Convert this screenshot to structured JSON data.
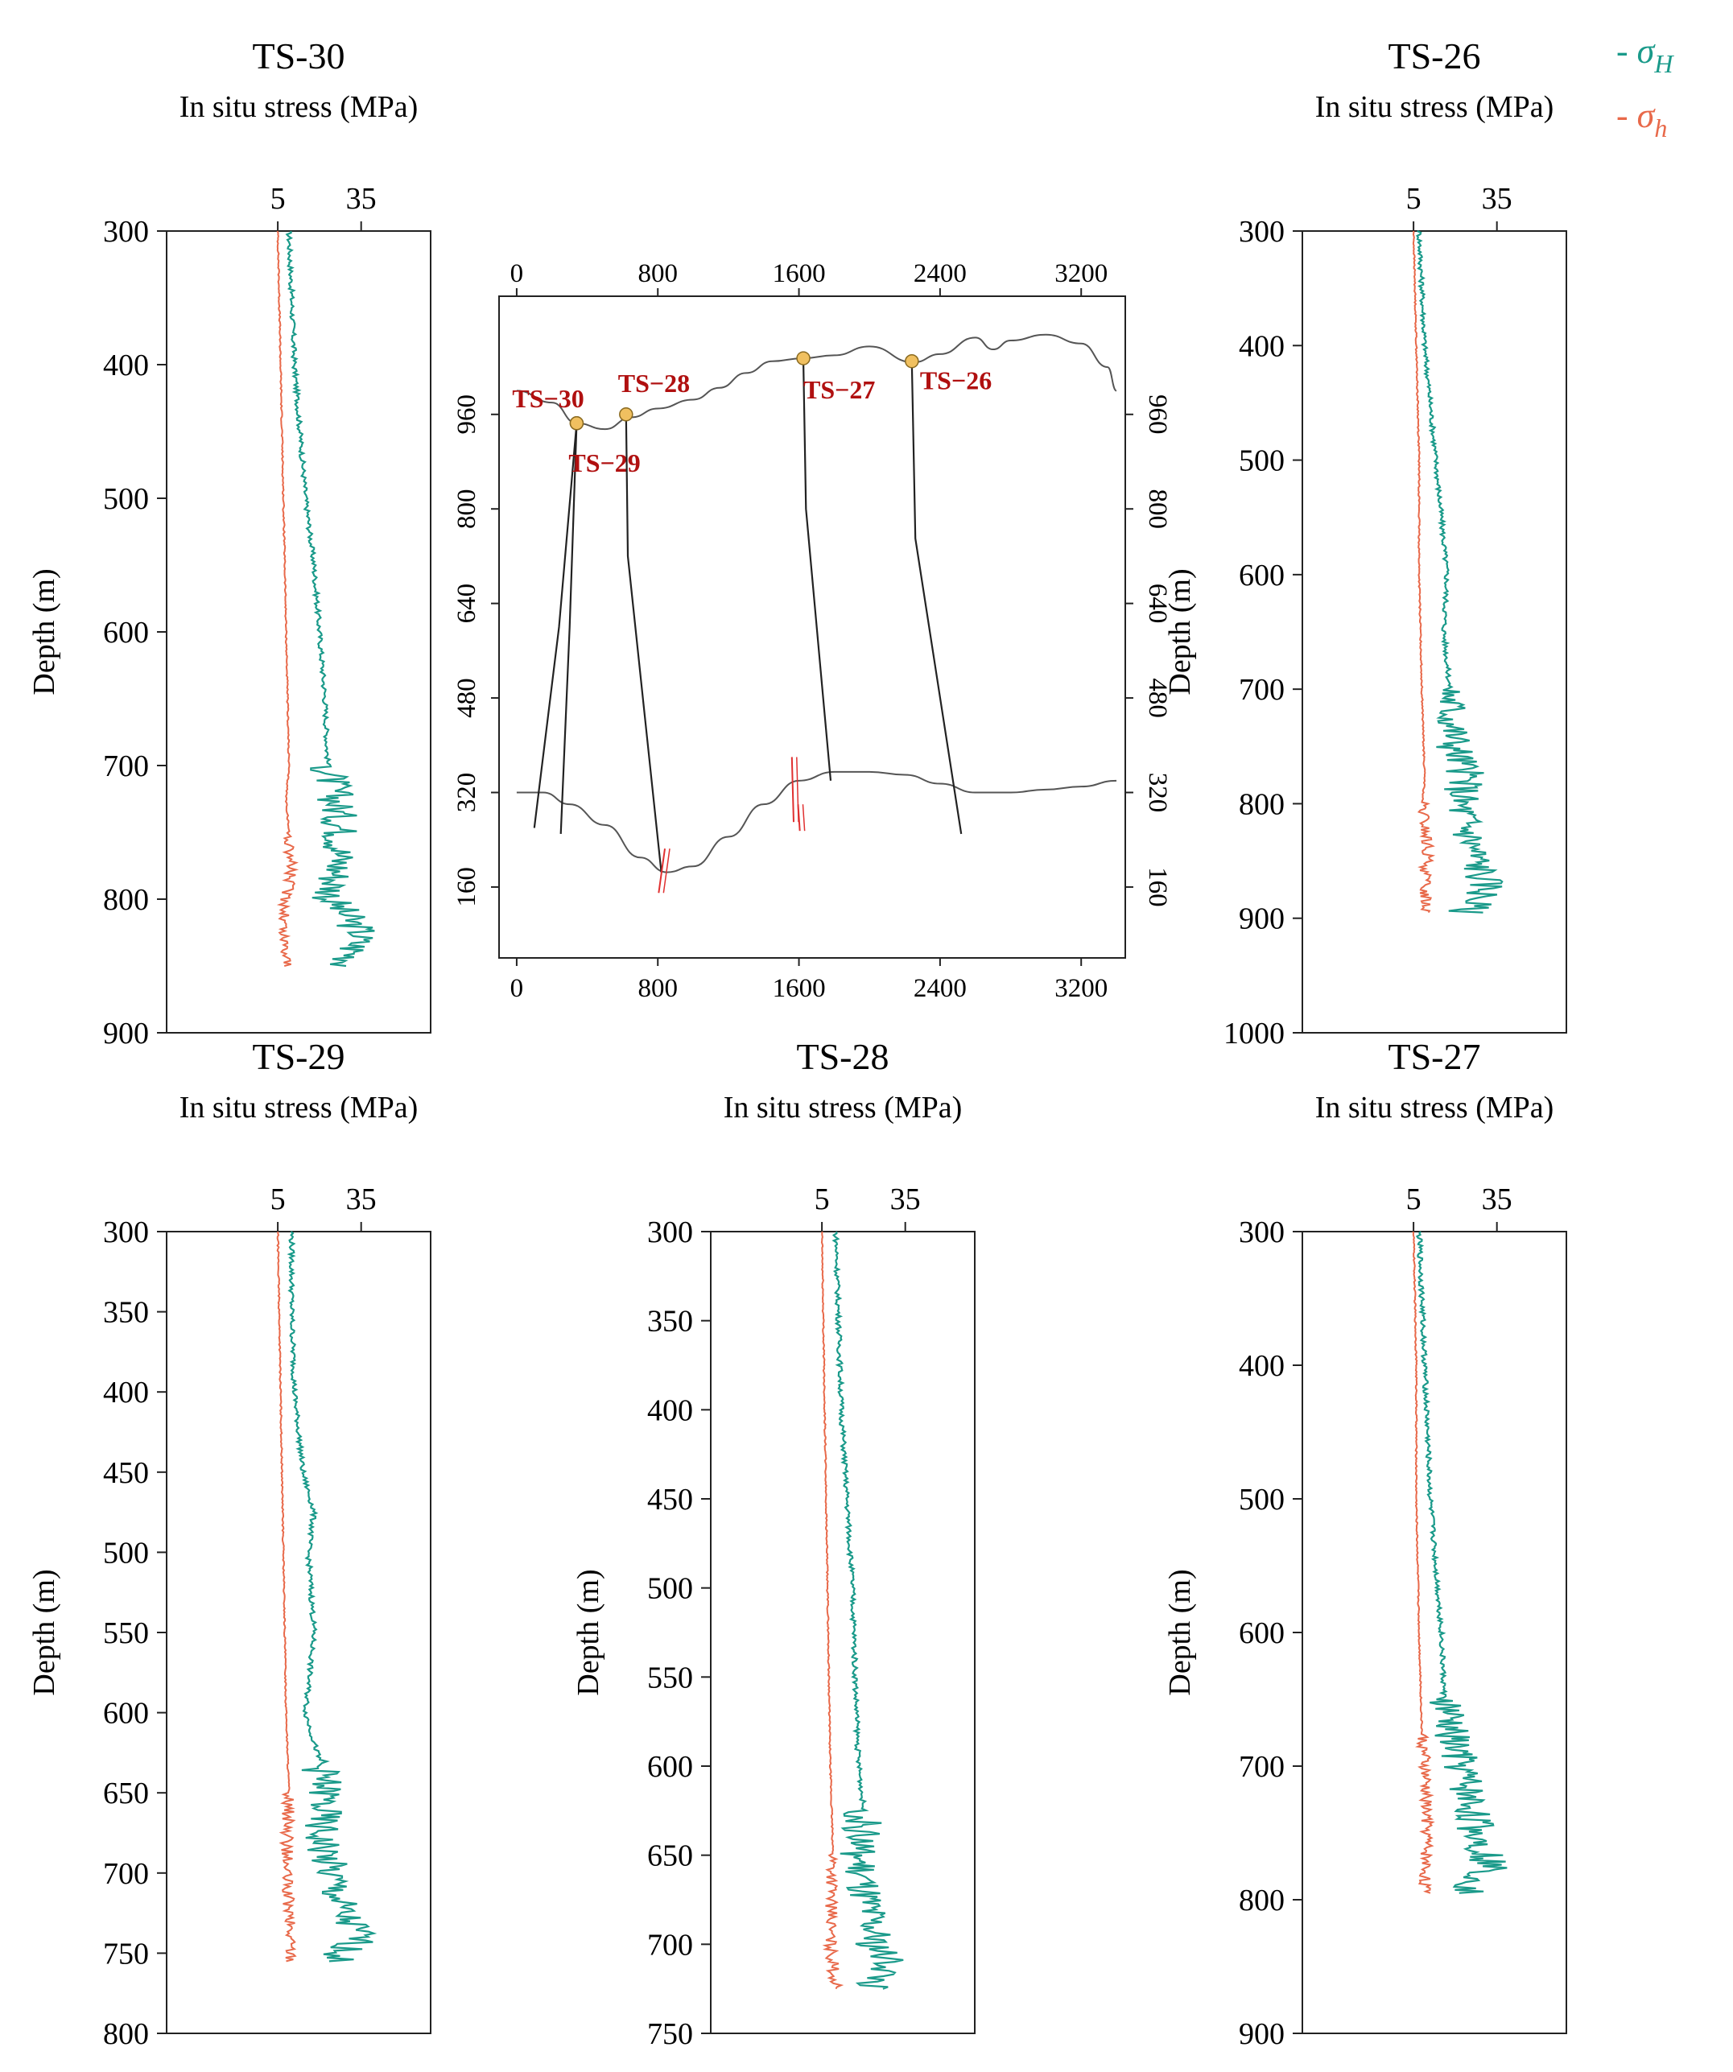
{
  "figure": {
    "legend": [
      {
        "dash": "-",
        "label": "σ",
        "subscript": "H",
        "color": "#1a9a8a"
      },
      {
        "dash": "-",
        "label": "σ",
        "subscript": "h",
        "color": "#e8694a"
      }
    ]
  },
  "chart_data": [
    {
      "type": "line",
      "id": "TS-30",
      "title": "TS-30",
      "xlabel": "In situ stress (MPa)",
      "ylabel": "Depth (m)",
      "xticks": [
        5,
        35
      ],
      "xlim": [
        -35,
        60
      ],
      "yticks": [
        300,
        400,
        500,
        600,
        700,
        800,
        900
      ],
      "ylim": [
        300,
        900
      ],
      "series": [
        {
          "name": "σH",
          "color": "#1a9a8a",
          "depth": [
            300,
            350,
            400,
            450,
            500,
            550,
            600,
            650,
            700,
            725,
            750,
            775,
            800,
            825,
            850
          ],
          "values": [
            9,
            10,
            11,
            13,
            15,
            18,
            20,
            22,
            23,
            26,
            28,
            27,
            24,
            35,
            30
          ]
        },
        {
          "name": "σh",
          "color": "#e8694a",
          "depth": [
            300,
            400,
            500,
            600,
            700,
            725,
            750,
            775,
            800,
            825,
            850
          ],
          "values": [
            5,
            6,
            7,
            8,
            9,
            8,
            9,
            10,
            8,
            7,
            9
          ]
        }
      ]
    },
    {
      "type": "line",
      "id": "TS-26",
      "title": "TS-26",
      "xlabel": "In situ stress (MPa)",
      "ylabel": "Depth (m)",
      "xticks": [
        5,
        35
      ],
      "xlim": [
        -35,
        60
      ],
      "yticks": [
        300,
        400,
        500,
        600,
        700,
        800,
        900,
        1000
      ],
      "ylim": [
        300,
        1000
      ],
      "series": [
        {
          "name": "σH",
          "color": "#1a9a8a",
          "depth": [
            300,
            350,
            400,
            450,
            500,
            550,
            600,
            650,
            700,
            750,
            775,
            800,
            825,
            850,
            875,
            895
          ],
          "values": [
            7,
            8,
            9,
            11,
            13,
            15,
            17,
            16,
            18,
            20,
            24,
            22,
            25,
            28,
            32,
            24
          ]
        },
        {
          "name": "σh",
          "color": "#e8694a",
          "depth": [
            300,
            400,
            500,
            600,
            700,
            780,
            800,
            840,
            870,
            895
          ],
          "values": [
            5,
            6,
            7,
            7,
            8,
            9,
            8,
            10,
            9,
            10
          ]
        }
      ]
    },
    {
      "type": "line",
      "id": "TS-29",
      "title": "TS-29",
      "xlabel": "In situ stress (MPa)",
      "ylabel": "Depth (m)",
      "xticks": [
        5,
        35
      ],
      "xlim": [
        -35,
        60
      ],
      "yticks": [
        300,
        350,
        400,
        450,
        500,
        550,
        600,
        650,
        700,
        750,
        800
      ],
      "ylim": [
        300,
        800
      ],
      "series": [
        {
          "name": "σH",
          "color": "#1a9a8a",
          "depth": [
            300,
            350,
            400,
            450,
            475,
            500,
            550,
            600,
            630,
            650,
            675,
            700,
            725,
            740,
            755
          ],
          "values": [
            10,
            10,
            11,
            14,
            18,
            16,
            18,
            15,
            20,
            22,
            20,
            24,
            28,
            35,
            25
          ]
        },
        {
          "name": "σh",
          "color": "#e8694a",
          "depth": [
            300,
            400,
            500,
            600,
            650,
            700,
            725,
            755
          ],
          "values": [
            5,
            6,
            7,
            8,
            9,
            8,
            9,
            10
          ]
        }
      ]
    },
    {
      "type": "line",
      "id": "TS-28",
      "title": "TS-28",
      "xlabel": "In situ stress (MPa)",
      "ylabel": "Depth (m)",
      "xticks": [
        5,
        35
      ],
      "xlim": [
        -35,
        60
      ],
      "yticks": [
        300,
        350,
        400,
        450,
        500,
        550,
        600,
        650,
        700,
        750
      ],
      "ylim": [
        300,
        750
      ],
      "series": [
        {
          "name": "σH",
          "color": "#1a9a8a",
          "depth": [
            300,
            350,
            400,
            450,
            500,
            550,
            595,
            625,
            650,
            675,
            700,
            712,
            725
          ],
          "values": [
            10,
            11,
            12,
            14,
            16,
            17,
            18,
            20,
            18,
            20,
            24,
            30,
            22
          ]
        },
        {
          "name": "σh",
          "color": "#e8694a",
          "depth": [
            300,
            400,
            500,
            600,
            650,
            700,
            725
          ],
          "values": [
            5,
            6,
            7,
            8,
            9,
            8,
            10
          ]
        }
      ]
    },
    {
      "type": "line",
      "id": "TS-27",
      "title": "TS-27",
      "xlabel": "In situ stress (MPa)",
      "ylabel": "Depth (m)",
      "xticks": [
        5,
        35
      ],
      "xlim": [
        -35,
        60
      ],
      "yticks": [
        300,
        400,
        500,
        600,
        700,
        800,
        900
      ],
      "ylim": [
        300,
        900
      ],
      "series": [
        {
          "name": "σH",
          "color": "#1a9a8a",
          "depth": [
            300,
            350,
            400,
            450,
            500,
            550,
            600,
            650,
            675,
            700,
            725,
            750,
            775,
            795
          ],
          "values": [
            7,
            8,
            9,
            10,
            11,
            13,
            15,
            16,
            18,
            22,
            25,
            28,
            33,
            24
          ]
        },
        {
          "name": "σh",
          "color": "#e8694a",
          "depth": [
            300,
            400,
            500,
            600,
            675,
            700,
            750,
            795
          ],
          "values": [
            5,
            6,
            6,
            7,
            8,
            9,
            10,
            9
          ]
        }
      ]
    },
    {
      "type": "line",
      "id": "cross-section",
      "title": "",
      "xticks": [
        0,
        800,
        1600,
        2400,
        3200
      ],
      "xlim": [
        -100,
        3450
      ],
      "yticks": [
        160,
        320,
        480,
        640,
        800,
        960
      ],
      "ylim": [
        40,
        1160
      ],
      "lines": [
        {
          "name": "surface",
          "color": "#555555",
          "x": [
            0,
            200,
            340,
            500,
            650,
            800,
            1000,
            1150,
            1300,
            1450,
            1620,
            1800,
            2000,
            2250,
            2400,
            2600,
            2700,
            2800,
            3000,
            3200,
            3350,
            3400
          ],
          "y": [
            1000,
            980,
            945,
            935,
            955,
            970,
            985,
            1005,
            1030,
            1050,
            1055,
            1060,
            1075,
            1048,
            1062,
            1090,
            1070,
            1085,
            1095,
            1080,
            1040,
            1000
          ]
        },
        {
          "name": "horizon",
          "color": "#555555",
          "x": [
            0,
            150,
            300,
            500,
            700,
            850,
            1000,
            1200,
            1400,
            1600,
            1800,
            2000,
            2200,
            2400,
            2600,
            2800,
            3000,
            3200,
            3400
          ],
          "y": [
            320,
            320,
            300,
            265,
            210,
            185,
            195,
            245,
            300,
            340,
            355,
            355,
            350,
            335,
            320,
            320,
            325,
            330,
            340
          ]
        }
      ],
      "wells": [
        {
          "name": "TS-30",
          "label": "TS−30",
          "x": [
            340,
            240,
            100
          ],
          "y": [
            945,
            600,
            260
          ]
        },
        {
          "name": "TS-29",
          "label": "TS−29",
          "x": [
            340,
            300,
            250
          ],
          "y": [
            945,
            600,
            250
          ]
        },
        {
          "name": "TS-28",
          "label": "TS−28",
          "x": [
            620,
            630,
            820
          ],
          "y": [
            960,
            720,
            185
          ]
        },
        {
          "name": "TS-27",
          "label": "TS−27",
          "x": [
            1625,
            1640,
            1780
          ],
          "y": [
            1055,
            800,
            340
          ]
        },
        {
          "name": "TS-26",
          "label": "TS−26",
          "x": [
            2240,
            2260,
            2520
          ],
          "y": [
            1050,
            750,
            250
          ]
        }
      ],
      "faults": [
        {
          "x": [
            840,
            805
          ],
          "y": [
            225,
            150
          ]
        },
        {
          "x": [
            1560,
            1570
          ],
          "y": [
            380,
            270
          ]
        },
        {
          "x": [
            1595,
            1605
          ],
          "y": [
            300,
            255
          ]
        }
      ]
    }
  ]
}
